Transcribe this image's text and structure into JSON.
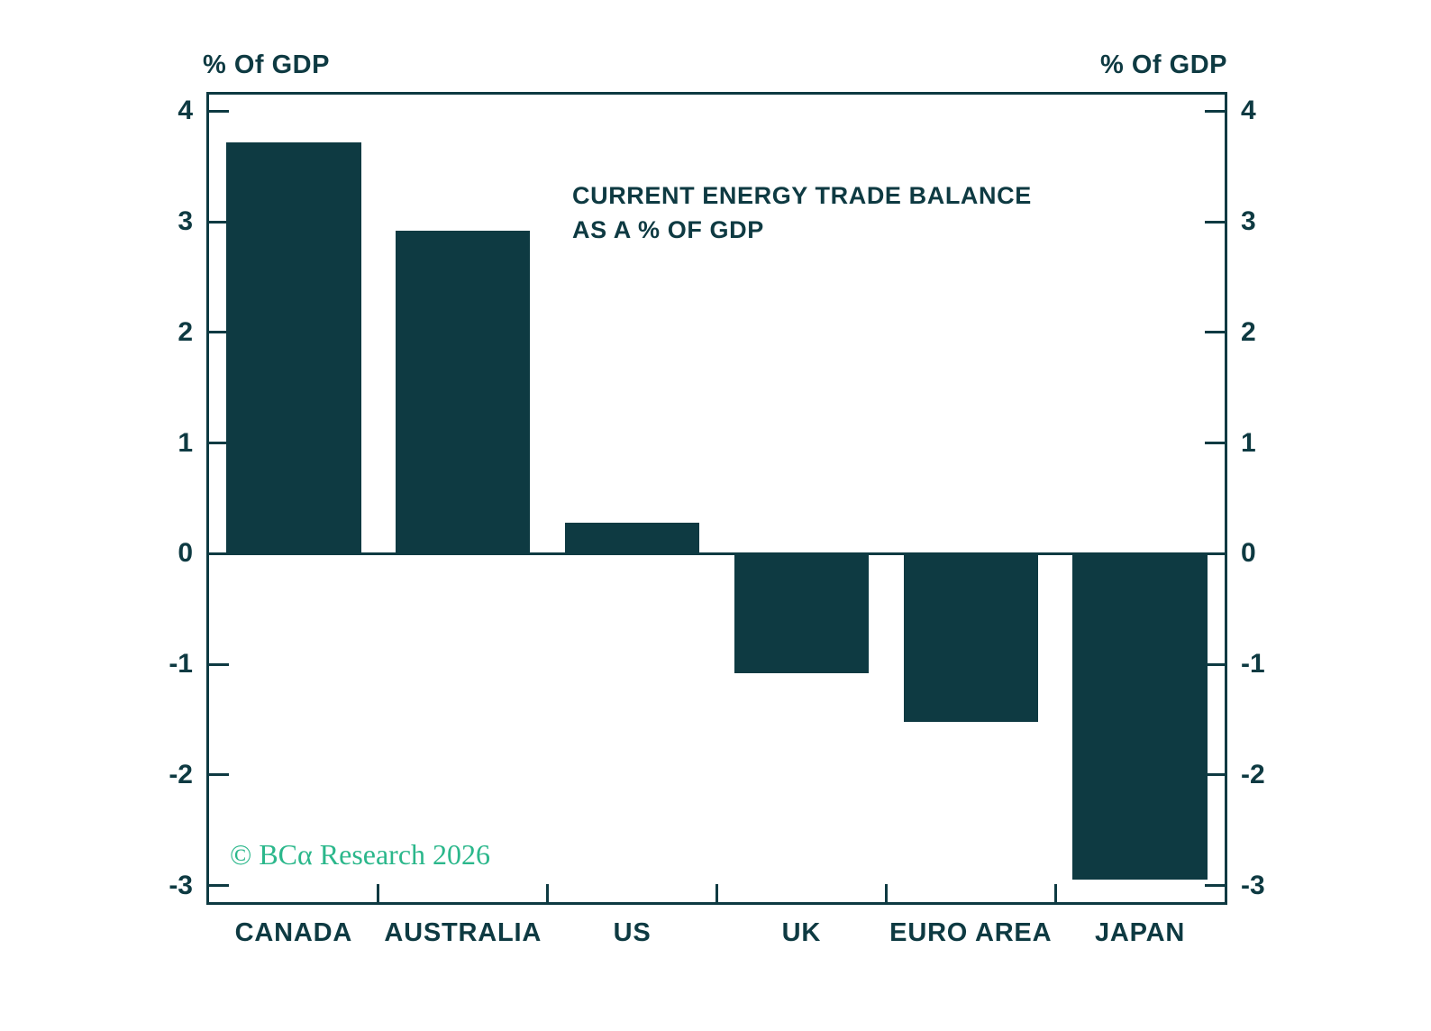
{
  "axis_labels": {
    "left": "% Of GDP",
    "right": "% Of GDP"
  },
  "watermark": {
    "text": "© BCα Research 2026",
    "color": "#2bb78b"
  },
  "chart_data": {
    "type": "bar",
    "title": "CURRENT ENERGY TRADE BALANCE AS A % OF GDP",
    "title_lines": [
      "CURRENT ENERGY TRADE BALANCE",
      "AS A % OF GDP"
    ],
    "categories": [
      "CANADA",
      "AUSTRALIA",
      "US",
      "UK",
      "EURO AREA",
      "JAPAN"
    ],
    "values": [
      3.72,
      2.92,
      0.28,
      -1.08,
      -1.52,
      -2.95
    ],
    "xlabel": "",
    "ylabel": "% Of GDP",
    "ylim": [
      -3.15,
      4.15
    ],
    "yticks": [
      4,
      3,
      2,
      1,
      0,
      -1,
      -2,
      -3
    ],
    "grid": false,
    "legend": "none",
    "bar_color": "#0e3a42",
    "axis_color": "#0e3a42",
    "text_color": "#0e3a42",
    "background_color": "#ffffff",
    "bar_width_fraction": 0.795
  }
}
